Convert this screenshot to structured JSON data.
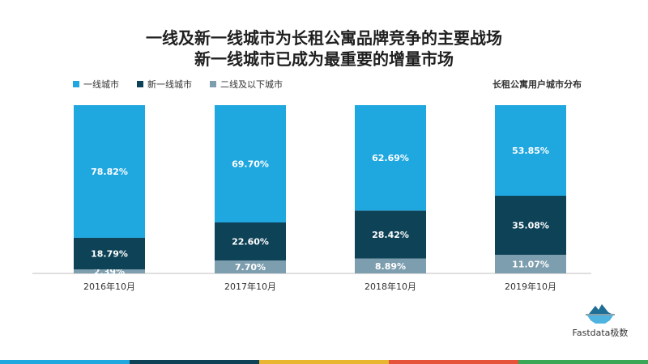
{
  "title_line1": "一线及新一线城市为长租公寓品牌竞争的主要战场",
  "title_line2": "新一线城市已成为最重要的增量市场",
  "subtitle": "长租公寓用户城市分布",
  "logo_text": "Fastdata极数",
  "colors": {
    "tier1": "#1fa7e0",
    "new_tier1": "#0e4257",
    "tier2_below": "#7d9eae",
    "axis": "#bfbfbf",
    "text": "#333333"
  },
  "footer_colors": [
    "#1fa7e0",
    "#0e4257",
    "#e8b630",
    "#e5533b",
    "#3aa757"
  ],
  "chart_data": {
    "type": "bar",
    "stacked": true,
    "categories": [
      "2016年10月",
      "2017年10月",
      "2018年10月",
      "2019年10月"
    ],
    "series": [
      {
        "name": "二线及以下城市",
        "values": [
          2.39,
          7.7,
          8.89,
          11.07
        ],
        "labels": [
          "2.39%",
          "7.70%",
          "8.89%",
          "11.07%"
        ]
      },
      {
        "name": "新一线城市",
        "values": [
          18.79,
          22.6,
          28.42,
          35.08
        ],
        "labels": [
          "18.79%",
          "22.60%",
          "28.42%",
          "35.08%"
        ]
      },
      {
        "name": "一线城市",
        "values": [
          78.82,
          69.7,
          62.69,
          53.85
        ],
        "labels": [
          "78.82%",
          "69.70%",
          "62.69%",
          "53.85%"
        ]
      }
    ],
    "ylim": [
      0,
      100
    ],
    "legend_order": [
      "一线城市",
      "新一线城市",
      "二线及以下城市"
    ],
    "legend_position": "top-left"
  }
}
